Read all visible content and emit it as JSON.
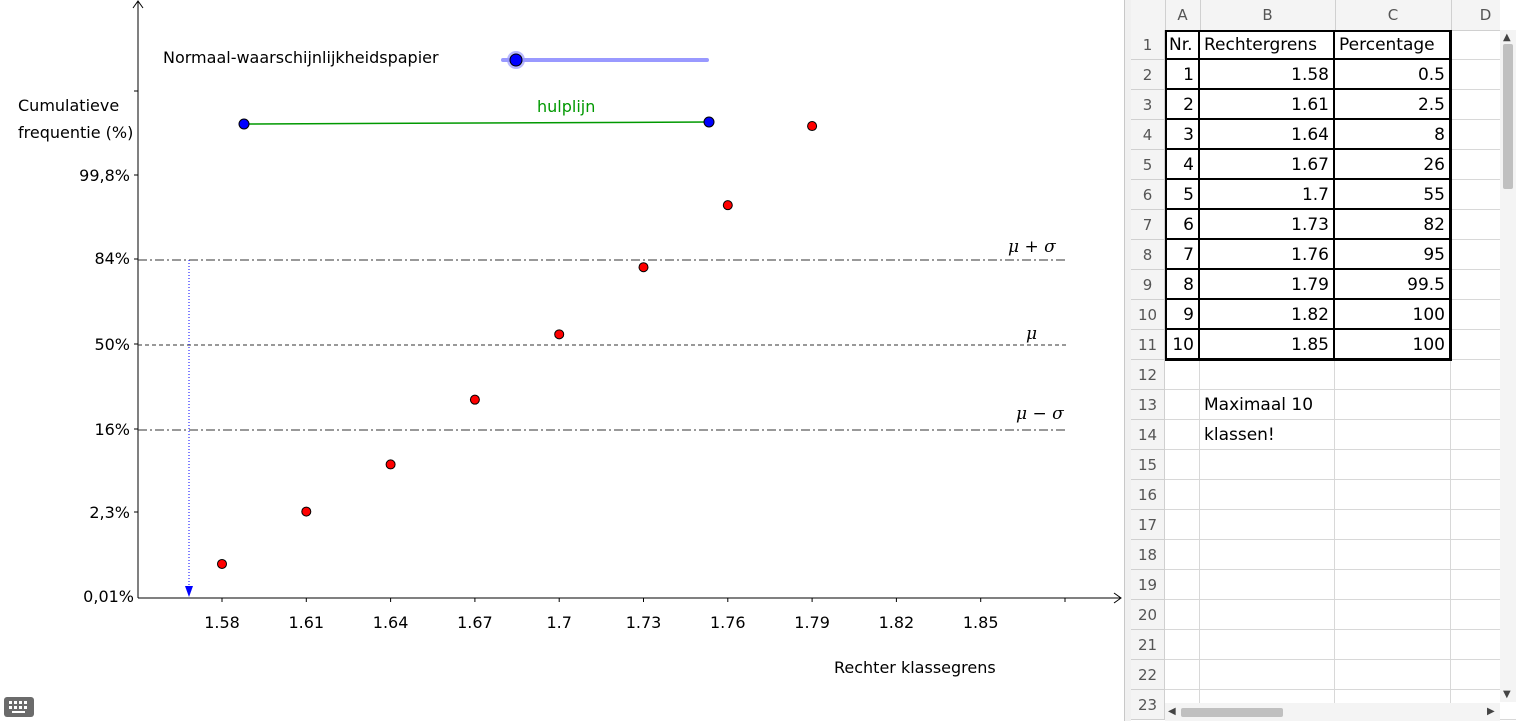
{
  "graphics": {
    "slider_label": "Normaal-waarschijnlijkheidspapier",
    "slider_value": 0.06,
    "helper_line_label": "hulplijn",
    "y_axis_label_line1": "Cumulatieve",
    "y_axis_label_line2": "frequentie (%)",
    "x_axis_label": "Rechter klassegrens",
    "y_ticks": [
      "99,8%",
      "84%",
      "50%",
      "16%",
      "2,3%",
      "0,01%"
    ],
    "x_ticks": [
      "1.58",
      "1.61",
      "1.64",
      "1.67",
      "1.7",
      "1.73",
      "1.76",
      "1.79",
      "1.82",
      "1.85"
    ],
    "ref_lines": {
      "mu_plus_sigma": "μ + σ",
      "mu": "μ",
      "mu_minus_sigma": "μ − σ"
    },
    "colors": {
      "points": "#ff0000",
      "helper_line": "#009900",
      "slider": "#9999ff",
      "handle": "#0000ff",
      "arrow": "#0000ff"
    },
    "keyboard_icon": "keyboard-icon"
  },
  "chart_data": {
    "type": "scatter",
    "x_label": "Rechter klassegrens",
    "y_label": "Cumulatieve frequentie (%)",
    "y_scale": "normal-probability",
    "x": [
      1.58,
      1.61,
      1.64,
      1.67,
      1.7,
      1.73,
      1.76,
      1.79
    ],
    "y": [
      0.5,
      2.5,
      8,
      26,
      55,
      82,
      95,
      99.5
    ]
  },
  "spreadsheet": {
    "columns": [
      "A",
      "B",
      "C",
      "D"
    ],
    "rows": [
      "1",
      "2",
      "3",
      "4",
      "5",
      "6",
      "7",
      "8",
      "9",
      "10",
      "11",
      "12",
      "13",
      "14",
      "15",
      "16",
      "17",
      "18",
      "19",
      "20",
      "21",
      "22",
      "23"
    ],
    "table_header": [
      "Nr.",
      "Rechtergrens",
      "Percentage"
    ],
    "table": [
      [
        "1",
        "1.58",
        "0.5"
      ],
      [
        "2",
        "1.61",
        "2.5"
      ],
      [
        "3",
        "1.64",
        "8"
      ],
      [
        "4",
        "1.67",
        "26"
      ],
      [
        "5",
        "1.7",
        "55"
      ],
      [
        "6",
        "1.73",
        "82"
      ],
      [
        "7",
        "1.76",
        "95"
      ],
      [
        "8",
        "1.79",
        "99.5"
      ],
      [
        "9",
        "1.82",
        "100"
      ],
      [
        "10",
        "1.85",
        "100"
      ]
    ],
    "note_line1": "Maximaal 10",
    "note_line2": "klassen!"
  }
}
